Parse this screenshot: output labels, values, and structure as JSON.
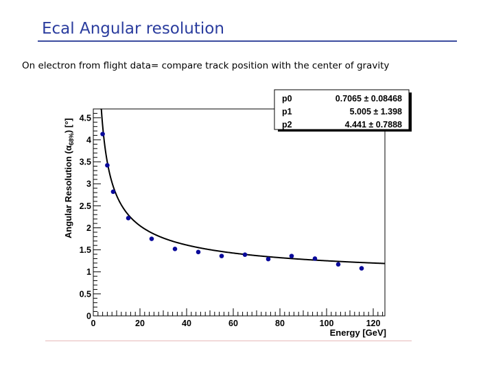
{
  "slide": {
    "title": "Ecal Angular resolution",
    "subtitle": "On electron from flight data= compare track position with the center of gravity"
  },
  "chart_data": {
    "type": "scatter",
    "xlabel": "Energy [GeV]",
    "ylabel_main": "Angular Resolution (α",
    "ylabel_sub": "68%",
    "ylabel_end": ") [°]",
    "xlim": [
      0,
      125
    ],
    "ylim": [
      0,
      4.7
    ],
    "x_ticks": [
      0,
      20,
      40,
      60,
      80,
      100,
      120
    ],
    "y_ticks": [
      0,
      0.5,
      1,
      1.5,
      2,
      2.5,
      3,
      3.5,
      4,
      4.5
    ],
    "points": [
      {
        "x": 4,
        "y": 4.13
      },
      {
        "x": 6,
        "y": 3.42
      },
      {
        "x": 8.5,
        "y": 2.82
      },
      {
        "x": 15,
        "y": 2.22
      },
      {
        "x": 25,
        "y": 1.75
      },
      {
        "x": 35,
        "y": 1.52
      },
      {
        "x": 45,
        "y": 1.45
      },
      {
        "x": 55,
        "y": 1.36
      },
      {
        "x": 65,
        "y": 1.39
      },
      {
        "x": 75,
        "y": 1.29
      },
      {
        "x": 85,
        "y": 1.36
      },
      {
        "x": 95,
        "y": 1.3
      },
      {
        "x": 105,
        "y": 1.17
      },
      {
        "x": 115,
        "y": 1.08
      }
    ],
    "fit": {
      "p0": 0.7065,
      "p1": 5.005,
      "p2": 4.441,
      "x_range": [
        3.2,
        125
      ]
    },
    "stats": [
      {
        "name": "p0",
        "value": "0.7065 ± 0.08468"
      },
      {
        "name": "p1",
        "value": "5.005 ± 1.398"
      },
      {
        "name": "p2",
        "value": "4.441 ± 0.7888"
      }
    ],
    "marker_color": "#0a0a9a",
    "line_color": "#000000"
  }
}
